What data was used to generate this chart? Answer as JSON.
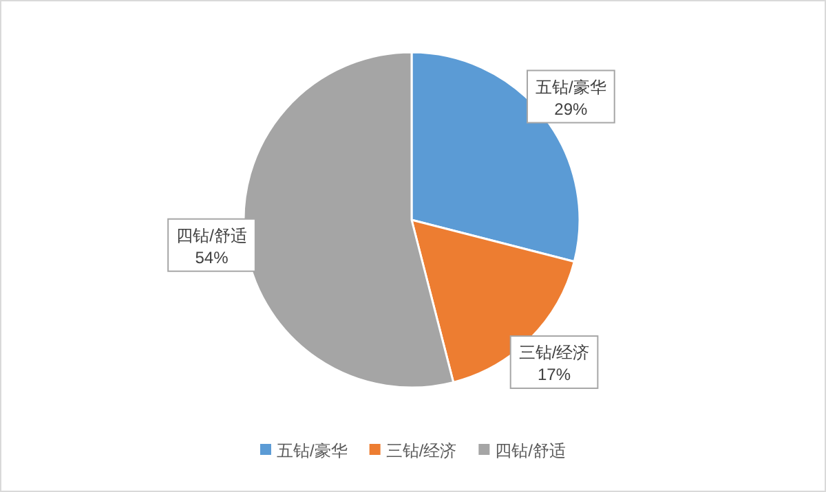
{
  "chart_data": {
    "type": "pie",
    "categories": [
      "五钻/豪华",
      "三钻/经济",
      "四钻/舒适"
    ],
    "values": [
      29,
      17,
      54
    ],
    "colors": [
      "#5b9bd5",
      "#ed7d31",
      "#a5a5a5"
    ],
    "value_labels": [
      "29%",
      "17%",
      "54%"
    ],
    "legend": "bottom"
  }
}
